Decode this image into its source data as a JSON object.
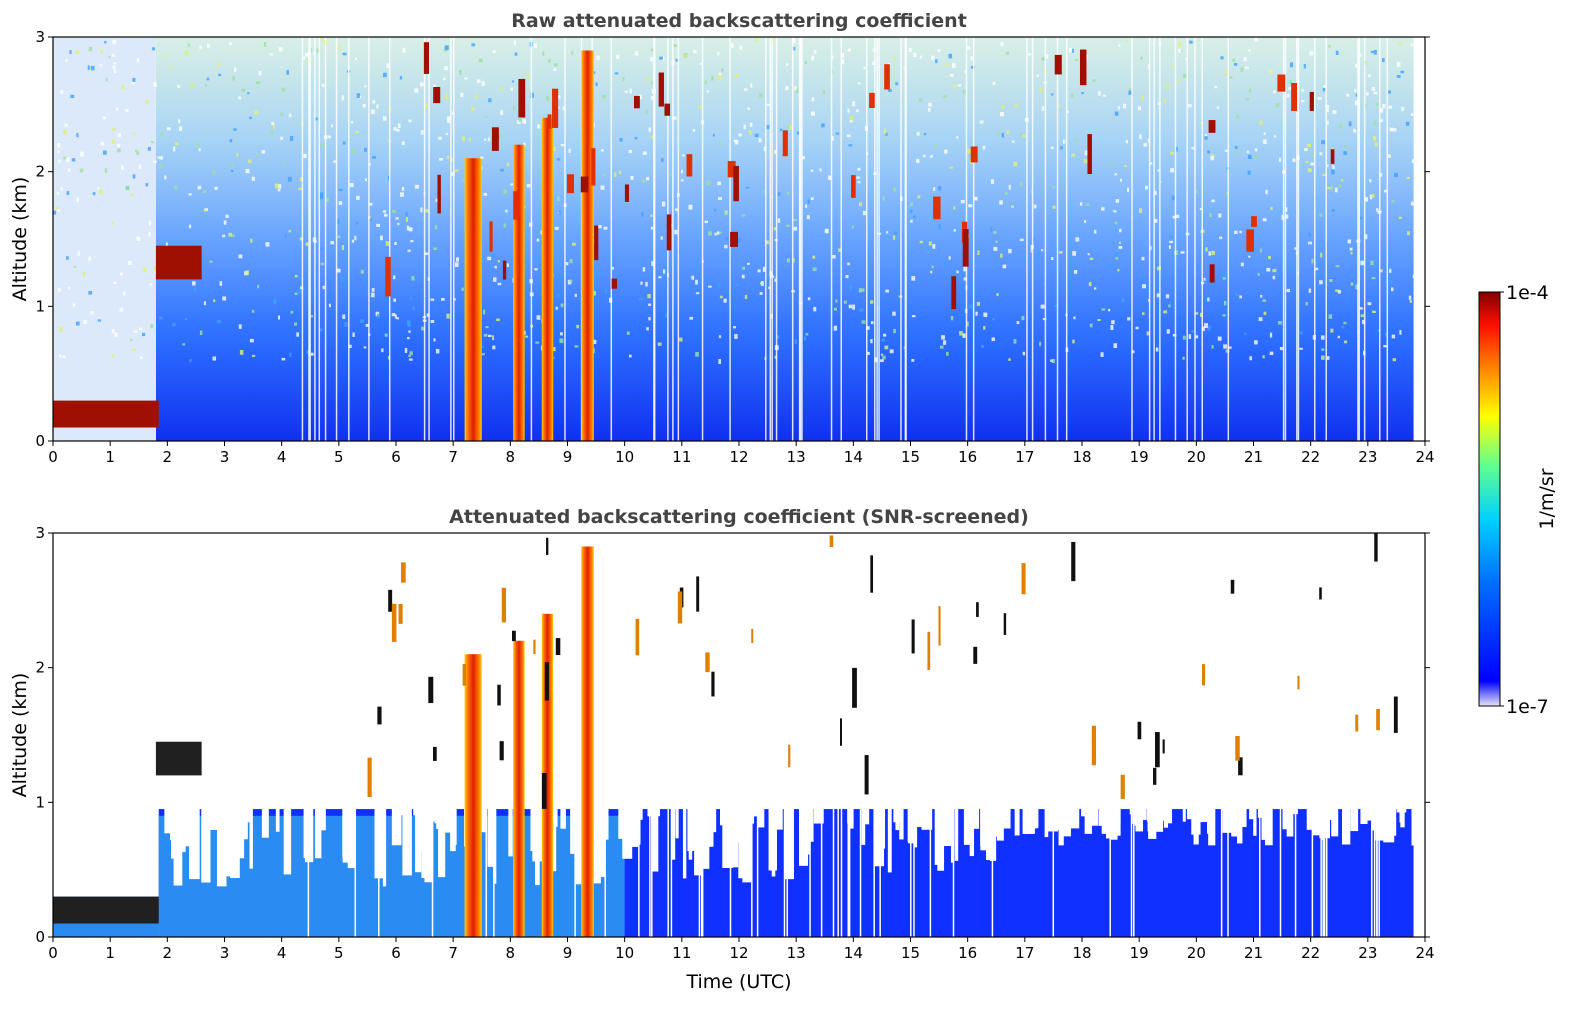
{
  "chart_data": [
    {
      "type": "heatmap",
      "title": "Raw attenuated backscattering coefficient",
      "xlabel": "",
      "ylabel": "Altitude (km)",
      "xlim": [
        0,
        24
      ],
      "ylim": [
        0,
        3
      ],
      "x_ticks": [
        "0",
        "1",
        "2",
        "3",
        "4",
        "5",
        "6",
        "7",
        "8",
        "9",
        "10",
        "11",
        "12",
        "13",
        "14",
        "15",
        "16",
        "17",
        "18",
        "19",
        "20",
        "21",
        "22",
        "23",
        "24"
      ],
      "y_ticks": [
        "0",
        "1",
        "2",
        "3"
      ],
      "grid": false,
      "layers": [
        {
          "name": "boundary-layer",
          "x_start": 0.0,
          "x_end": 1.85,
          "alt_bottom": 0.1,
          "alt_top": 0.3,
          "intensity": "max"
        },
        {
          "name": "aerosol-layer",
          "x_start": 1.8,
          "x_end": 2.6,
          "alt_bottom": 1.2,
          "alt_top": 1.45,
          "intensity": "max"
        },
        {
          "name": "precip-column-1",
          "x_center": 7.35,
          "x_width": 0.3,
          "alt_bottom": 0.0,
          "alt_top": 2.1,
          "intensity": "high"
        },
        {
          "name": "precip-column-2",
          "x_center": 8.15,
          "x_width": 0.2,
          "alt_bottom": 0.0,
          "alt_top": 2.2,
          "intensity": "high"
        },
        {
          "name": "precip-column-3",
          "x_center": 8.65,
          "x_width": 0.2,
          "alt_bottom": 0.0,
          "alt_top": 2.4,
          "intensity": "high"
        },
        {
          "name": "precip-column-4",
          "x_center": 9.35,
          "x_width": 0.22,
          "alt_bottom": 0.0,
          "alt_top": 2.9,
          "intensity": "high"
        }
      ]
    },
    {
      "type": "heatmap",
      "title": "Attenuated backscattering coefficient (SNR-screened)",
      "xlabel": "Time (UTC)",
      "ylabel": "Altitude (km)",
      "xlim": [
        0,
        24
      ],
      "ylim": [
        0,
        3
      ],
      "x_ticks": [
        "0",
        "1",
        "2",
        "3",
        "4",
        "5",
        "6",
        "7",
        "8",
        "9",
        "10",
        "11",
        "12",
        "13",
        "14",
        "15",
        "16",
        "17",
        "18",
        "19",
        "20",
        "21",
        "22",
        "23",
        "24"
      ],
      "y_ticks": [
        "0",
        "1",
        "2",
        "3"
      ],
      "grid": false
    }
  ],
  "colorbar": {
    "label": "1/m/sr",
    "max_label": "1e-4",
    "min_label": "1e-7",
    "scale": "log",
    "colormap": [
      "#e6e6f8",
      "#0000ff",
      "#0090ff",
      "#00e0ff",
      "#60ff90",
      "#ffff00",
      "#ff9000",
      "#ff2000",
      "#800000"
    ]
  }
}
